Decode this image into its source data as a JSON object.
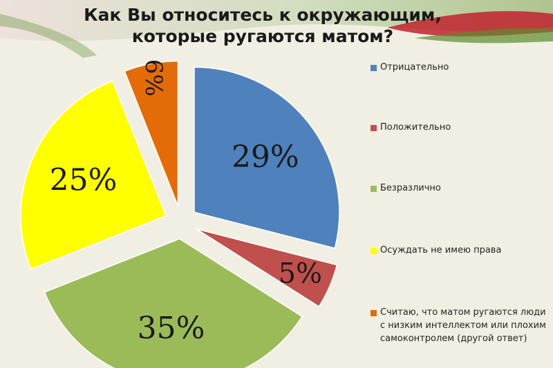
{
  "title": {
    "line1": "Как Вы относитесь к окружающим,",
    "line2": "которые ругаются матом?"
  },
  "colors": {
    "background": "#f1efe3",
    "accent_red": "#c0232e",
    "accent_green": "#5c8a2e"
  },
  "chart_data": {
    "type": "pie",
    "exploded": true,
    "legend_position": "right",
    "slices": [
      {
        "name": "Отрицательно",
        "value": 29,
        "label": "29%",
        "color": "#4f81bd"
      },
      {
        "name": "Положительно",
        "value": 5,
        "label": "5%",
        "color": "#c0504d"
      },
      {
        "name": "Безразлично",
        "value": 35,
        "label": "35%",
        "color": "#9bbb59"
      },
      {
        "name": "Осуждать не имею права",
        "value": 25,
        "label": "25%",
        "color": "#ffff00"
      },
      {
        "name": "Считаю, что матом ругаются люди с низким интеллектом или плохим самоконтролем (другой ответ)",
        "value": 6,
        "label": "6%",
        "color": "#e36c09"
      }
    ],
    "legend": [
      {
        "label": "Отрицательно",
        "color": "#4f81bd"
      },
      {
        "label": "Положительно",
        "color": "#c0504d"
      },
      {
        "label": "Безразлично",
        "color": "#9bbb59"
      },
      {
        "label": "Осуждать не имею права",
        "color": "#ffff00"
      },
      {
        "label": "Считаю, что матом ругаются люди с низким интеллектом или плохим самоконтролем (другой ответ)",
        "color": "#e36c09"
      }
    ]
  }
}
